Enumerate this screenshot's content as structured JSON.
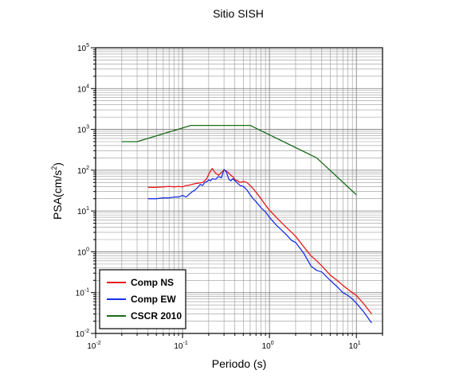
{
  "chart_data": {
    "type": "line",
    "title": "Sitio SISH",
    "xlabel": "Periodo (s)",
    "ylabel_main": "PSA(cm/s",
    "ylabel_sup": "2",
    "ylabel_close": ")",
    "x_scale": "log",
    "y_scale": "log",
    "xlim": [
      0.01,
      20
    ],
    "ylim": [
      0.01,
      100000
    ],
    "grid": true,
    "legend_position": "bottom-left",
    "x_ticks": [
      {
        "base": "10",
        "exp": "-2",
        "value": 0.01
      },
      {
        "base": "10",
        "exp": "-1",
        "value": 0.1
      },
      {
        "base": "10",
        "exp": "0",
        "value": 1
      },
      {
        "base": "10",
        "exp": "1",
        "value": 10
      }
    ],
    "y_ticks": [
      {
        "base": "10",
        "exp": "-2",
        "value": 0.01
      },
      {
        "base": "10",
        "exp": "-1",
        "value": 0.1
      },
      {
        "base": "10",
        "exp": "0",
        "value": 1
      },
      {
        "base": "10",
        "exp": "1",
        "value": 10
      },
      {
        "base": "10",
        "exp": "2",
        "value": 100
      },
      {
        "base": "10",
        "exp": "3",
        "value": 1000
      },
      {
        "base": "10",
        "exp": "4",
        "value": 10000
      },
      {
        "base": "10",
        "exp": "5",
        "value": 100000
      }
    ],
    "series": [
      {
        "name": "Comp NS",
        "color": "#e8191c",
        "x": [
          0.04,
          0.05,
          0.06,
          0.07,
          0.08,
          0.09,
          0.1,
          0.11,
          0.12,
          0.13,
          0.14,
          0.15,
          0.16,
          0.17,
          0.18,
          0.19,
          0.2,
          0.21,
          0.22,
          0.23,
          0.24,
          0.26,
          0.28,
          0.3,
          0.32,
          0.34,
          0.36,
          0.38,
          0.4,
          0.43,
          0.46,
          0.5,
          0.55,
          0.6,
          0.65,
          0.7,
          0.8,
          0.9,
          1.0,
          1.2,
          1.4,
          1.6,
          1.8,
          2.0,
          2.5,
          3.0,
          3.5,
          4.0,
          5.0,
          6.0,
          7.0,
          8.0,
          9.0,
          10.0,
          12.0,
          15.0
        ],
        "y": [
          38,
          38,
          39,
          40,
          39,
          40,
          39,
          42,
          43,
          45,
          47,
          48,
          49,
          50,
          55,
          62,
          80,
          95,
          110,
          95,
          85,
          75,
          88,
          100,
          95,
          85,
          75,
          70,
          58,
          55,
          50,
          53,
          50,
          42,
          35,
          29,
          20,
          14,
          10.5,
          7,
          5,
          3.8,
          3.0,
          2.4,
          1.3,
          0.8,
          0.6,
          0.45,
          0.27,
          0.2,
          0.15,
          0.12,
          0.1,
          0.085,
          0.055,
          0.03
        ]
      },
      {
        "name": "Comp EW",
        "color": "#1930e8",
        "x": [
          0.04,
          0.05,
          0.06,
          0.07,
          0.08,
          0.09,
          0.1,
          0.11,
          0.12,
          0.13,
          0.14,
          0.15,
          0.16,
          0.17,
          0.18,
          0.19,
          0.2,
          0.21,
          0.22,
          0.23,
          0.24,
          0.26,
          0.28,
          0.3,
          0.32,
          0.34,
          0.36,
          0.38,
          0.4,
          0.43,
          0.46,
          0.5,
          0.55,
          0.6,
          0.65,
          0.7,
          0.8,
          0.9,
          1.0,
          1.2,
          1.4,
          1.6,
          1.8,
          2.0,
          2.5,
          3.0,
          3.5,
          4.0,
          5.0,
          6.0,
          7.0,
          8.0,
          9.0,
          10.0,
          12.0,
          15.0
        ],
        "y": [
          20,
          20,
          21,
          21,
          22,
          22,
          24,
          22,
          26,
          30,
          33,
          38,
          45,
          42,
          50,
          52,
          58,
          55,
          62,
          60,
          60,
          70,
          65,
          105,
          90,
          60,
          55,
          62,
          55,
          48,
          42,
          40,
          33,
          25,
          20,
          17,
          12,
          9.5,
          7,
          4.5,
          3.3,
          2.5,
          1.9,
          1.7,
          0.9,
          0.45,
          0.35,
          0.32,
          0.2,
          0.14,
          0.1,
          0.085,
          0.07,
          0.055,
          0.035,
          0.018
        ]
      },
      {
        "name": "CSCR 2010",
        "color": "#1a6a1a",
        "x": [
          0.02,
          0.03,
          0.125,
          0.6,
          3.5,
          10.0
        ],
        "y": [
          500,
          500,
          1250,
          1250,
          200,
          25
        ]
      }
    ]
  }
}
